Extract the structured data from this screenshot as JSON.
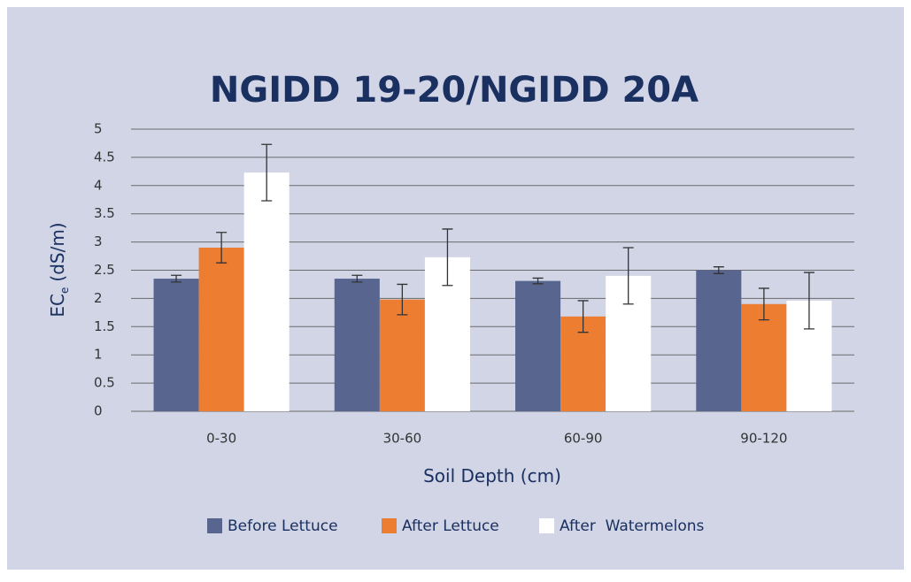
{
  "chart_data": {
    "type": "bar",
    "title": "NGIDD 19-20/NGIDD 20A",
    "y_label": "EC",
    "y_label_subscript": "e",
    "y_label_unit": "(dS/m)",
    "x_label": "Soil Depth (cm)",
    "categories": [
      "0-30",
      "30-60",
      "60-90",
      "90-120"
    ],
    "series": [
      {
        "name": "Before Lettuce",
        "color": "#58668f",
        "values": [
          2.35,
          2.35,
          2.31,
          2.5
        ],
        "errors": [
          0.06,
          0.06,
          0.05,
          0.06
        ]
      },
      {
        "name": "After Lettuce",
        "color": "#ed7d31",
        "values": [
          2.9,
          1.98,
          1.68,
          1.9
        ],
        "errors": [
          0.27,
          0.27,
          0.28,
          0.28
        ]
      },
      {
        "name": "After  Watermelons",
        "color": "#ffffff",
        "values": [
          4.23,
          2.73,
          2.4,
          1.96
        ],
        "errors": [
          0.5,
          0.5,
          0.5,
          0.5
        ]
      }
    ],
    "ylim": [
      0,
      5
    ],
    "yticks": [
      0,
      0.5,
      1,
      1.5,
      2,
      2.5,
      3,
      3.5,
      4,
      4.5,
      5
    ],
    "grid": true,
    "legend": "bottom"
  }
}
